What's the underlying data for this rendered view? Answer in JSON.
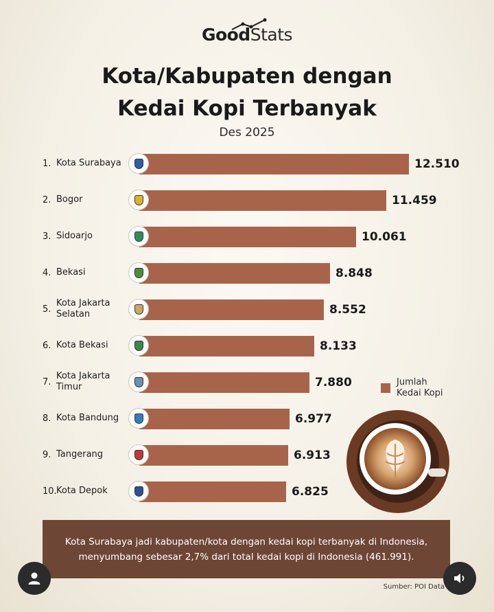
{
  "brand": {
    "part1": "Good",
    "part2": "Stats"
  },
  "title_line1": "Kota/Kabupaten dengan",
  "title_line2": "Kedai Kopi Terbanyak",
  "subtitle": "Des 2025",
  "legend": {
    "line1": "Jumlah",
    "line2": "Kedai Kopi"
  },
  "note": "Kota Surabaya jadi kabupaten/kota dengan kedai kopi terbanyak di Indonesia, menyumbang sebesar 2,7% dari total kedai kopi di Indonesia (461.991).",
  "source": "Sumber: POI Data",
  "colors": {
    "bar": "#a8644a",
    "note_bg": "#6e4636"
  },
  "icons": {
    "left_button": "user-icon",
    "right_button": "speaker-icon"
  },
  "chart_data": {
    "type": "bar",
    "orientation": "horizontal",
    "title": "Kota/Kabupaten dengan Kedai Kopi Terbanyak",
    "subtitle": "Des 2025",
    "legend_position": "right",
    "ranks": [
      "1.",
      "2.",
      "3.",
      "4.",
      "5.",
      "6.",
      "7.",
      "8.",
      "9.",
      "10."
    ],
    "categories": [
      "Kota Surabaya",
      "Bogor",
      "Sidoarjo",
      "Bekasi",
      "Kota Jakarta Selatan",
      "Kota Bekasi",
      "Kota Jakarta Timur",
      "Kota Bandung",
      "Tangerang",
      "Kota Depok"
    ],
    "values": [
      12510,
      11459,
      10061,
      8848,
      8552,
      8133,
      7880,
      6977,
      6913,
      6825
    ],
    "value_labels": [
      "12.510",
      "11.459",
      "10.061",
      "8.848",
      "8.552",
      "8.133",
      "7.880",
      "6.977",
      "6.913",
      "6.825"
    ],
    "series": [
      {
        "name": "Jumlah Kedai Kopi",
        "values": [
          12510,
          11459,
          10061,
          8848,
          8552,
          8133,
          7880,
          6977,
          6913,
          6825
        ]
      }
    ],
    "grid": false
  }
}
